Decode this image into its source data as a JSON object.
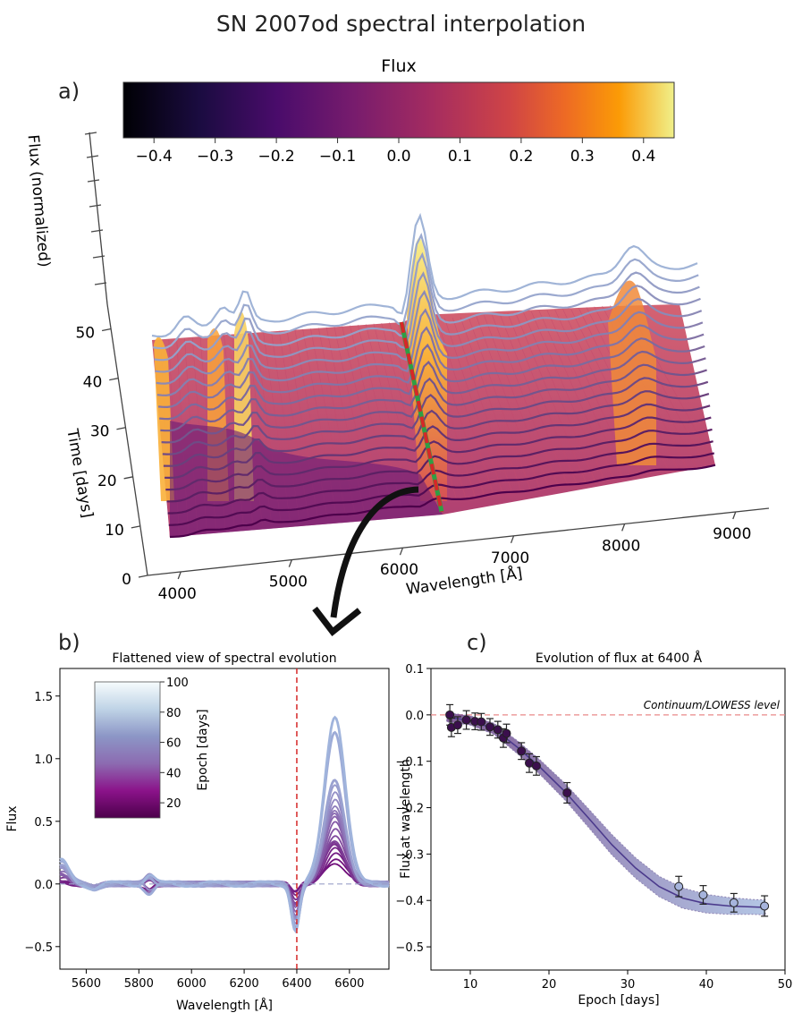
{
  "title": "SN 2007od spectral interpolation",
  "panel_labels": {
    "a": "a)",
    "b": "b)",
    "c": "c)"
  },
  "colors": {
    "highlight_line": "#d62728",
    "ref_line_b": "#9aa0c8",
    "ref_line_c": "#e88a8a",
    "points": "#3b0f4d",
    "band": "#7a6bbf",
    "fit": "#4b3a8c",
    "arrow": "#111111"
  },
  "chart_data": [
    {
      "id": "a",
      "type": "surface",
      "colorbar": {
        "label": "Flux",
        "colormap": "inferno",
        "range": [
          -0.45,
          0.45
        ],
        "ticks": [
          "−0.4",
          "−0.3",
          "−0.2",
          "−0.1",
          "0.0",
          "0.1",
          "0.2",
          "0.3",
          "0.4"
        ],
        "tick_values": [
          -0.4,
          -0.3,
          -0.2,
          -0.1,
          0.0,
          0.1,
          0.2,
          0.3,
          0.4
        ]
      },
      "xlabel": "Wavelength [Å]",
      "ylabel": "Time [days]",
      "zlabel": "Flux (normalized)",
      "x_ticks": [
        "4000",
        "5000",
        "6000",
        "7000",
        "8000",
        "9000"
      ],
      "x_tick_values": [
        4000,
        5000,
        6000,
        7000,
        8000,
        9000
      ],
      "y_ticks": [
        "0",
        "10",
        "20",
        "30",
        "40",
        "50"
      ],
      "y_tick_values": [
        0,
        10,
        20,
        30,
        40,
        50
      ],
      "xlim": [
        3700,
        9300
      ],
      "ylim": [
        0,
        55
      ],
      "highlight_wavelength": 6400
    },
    {
      "id": "b",
      "type": "line",
      "title": "Flattened view of spectral evolution",
      "xlabel": "Wavelength [Å]",
      "ylabel": "Flux",
      "xlim": [
        5500,
        6750
      ],
      "ylim": [
        -0.68,
        1.72
      ],
      "x_ticks": [
        "5600",
        "5800",
        "6000",
        "6200",
        "6400",
        "6600"
      ],
      "x_tick_values": [
        5600,
        5800,
        6000,
        6200,
        6400,
        6600
      ],
      "y_ticks": [
        "−0.5",
        "0.0",
        "0.5",
        "1.0",
        "1.5"
      ],
      "y_tick_values": [
        -0.5,
        0.0,
        0.5,
        1.0,
        1.5
      ],
      "vline": 6400,
      "hline": 0.0,
      "colorbar": {
        "label": "Epoch [days]",
        "colormap": "BuPu",
        "range": [
          10,
          100
        ],
        "ticks": [
          "20",
          "40",
          "60",
          "80",
          "100"
        ],
        "tick_values": [
          20,
          40,
          60,
          80,
          100
        ]
      },
      "series": [
        {
          "epoch": 7.5,
          "emission_peak": 0.18
        },
        {
          "epoch": 8.4,
          "emission_peak": 0.21
        },
        {
          "epoch": 9.5,
          "emission_peak": 0.24
        },
        {
          "epoch": 10.6,
          "emission_peak": 0.27
        },
        {
          "epoch": 11.5,
          "emission_peak": 0.3
        },
        {
          "epoch": 12.7,
          "emission_peak": 0.33
        },
        {
          "epoch": 13.8,
          "emission_peak": 0.36
        },
        {
          "epoch": 14.6,
          "emission_peak": 0.4
        },
        {
          "epoch": 16.5,
          "emission_peak": 0.44
        },
        {
          "epoch": 17.6,
          "emission_peak": 0.48
        },
        {
          "epoch": 18.5,
          "emission_peak": 0.52
        },
        {
          "epoch": 22.3,
          "emission_peak": 0.56
        },
        {
          "epoch": 25.0,
          "emission_peak": 0.6
        },
        {
          "epoch": 28.0,
          "emission_peak": 0.64
        },
        {
          "epoch": 31.0,
          "emission_peak": 0.68
        },
        {
          "epoch": 34.0,
          "emission_peak": 0.72
        },
        {
          "epoch": 36.5,
          "emission_peak": 0.77
        },
        {
          "epoch": 39.6,
          "emission_peak": 0.82
        },
        {
          "epoch": 43.5,
          "emission_peak": 1.22
        },
        {
          "epoch": 47.4,
          "emission_peak": 1.35
        }
      ]
    },
    {
      "id": "c",
      "type": "scatter",
      "title": "Evolution of flux at 6400 Å",
      "xlabel": "Epoch [days]",
      "ylabel": "Flux at wavelength",
      "xlim": [
        5,
        50
      ],
      "ylim": [
        -0.55,
        0.1
      ],
      "x_ticks": [
        "10",
        "20",
        "30",
        "40",
        "50"
      ],
      "x_tick_values": [
        10,
        20,
        30,
        40,
        50
      ],
      "y_ticks": [
        "0.1",
        "0.0",
        "−0.1",
        "−0.2",
        "−0.3",
        "−0.4",
        "−0.5"
      ],
      "y_tick_values": [
        0.1,
        0.0,
        -0.1,
        -0.2,
        -0.3,
        -0.4,
        -0.5
      ],
      "hline": 0.0,
      "annotation": "Continuum/LOWESS level",
      "points": [
        {
          "x": 7.4,
          "y": 0.0,
          "err": 0.022
        },
        {
          "x": 7.6,
          "y": -0.027,
          "err": 0.02
        },
        {
          "x": 8.4,
          "y": -0.022,
          "err": 0.018
        },
        {
          "x": 9.5,
          "y": -0.011,
          "err": 0.02
        },
        {
          "x": 10.6,
          "y": -0.014,
          "err": 0.018
        },
        {
          "x": 11.4,
          "y": -0.015,
          "err": 0.018
        },
        {
          "x": 12.5,
          "y": -0.026,
          "err": 0.018
        },
        {
          "x": 13.5,
          "y": -0.032,
          "err": 0.018
        },
        {
          "x": 14.2,
          "y": -0.05,
          "err": 0.02
        },
        {
          "x": 14.6,
          "y": -0.04,
          "err": 0.02
        },
        {
          "x": 16.5,
          "y": -0.078,
          "err": 0.018
        },
        {
          "x": 17.5,
          "y": -0.104,
          "err": 0.02
        },
        {
          "x": 18.4,
          "y": -0.11,
          "err": 0.02
        },
        {
          "x": 22.3,
          "y": -0.168,
          "err": 0.022
        },
        {
          "x": 36.5,
          "y": -0.37,
          "err": 0.022
        },
        {
          "x": 39.6,
          "y": -0.388,
          "err": 0.02
        },
        {
          "x": 43.5,
          "y": -0.405,
          "err": 0.02
        },
        {
          "x": 47.4,
          "y": -0.412,
          "err": 0.022
        }
      ],
      "fit_curve": {
        "x": [
          7,
          10,
          13,
          16,
          19,
          22,
          25,
          28,
          31,
          34,
          37,
          40,
          43,
          46,
          47.5
        ],
        "y": [
          -0.005,
          -0.012,
          -0.03,
          -0.07,
          -0.115,
          -0.165,
          -0.222,
          -0.28,
          -0.33,
          -0.37,
          -0.395,
          -0.407,
          -0.412,
          -0.414,
          -0.415
        ],
        "err": [
          0.01,
          0.01,
          0.012,
          0.014,
          0.016,
          0.018,
          0.02,
          0.022,
          0.022,
          0.022,
          0.022,
          0.02,
          0.018,
          0.016,
          0.016
        ]
      }
    }
  ]
}
